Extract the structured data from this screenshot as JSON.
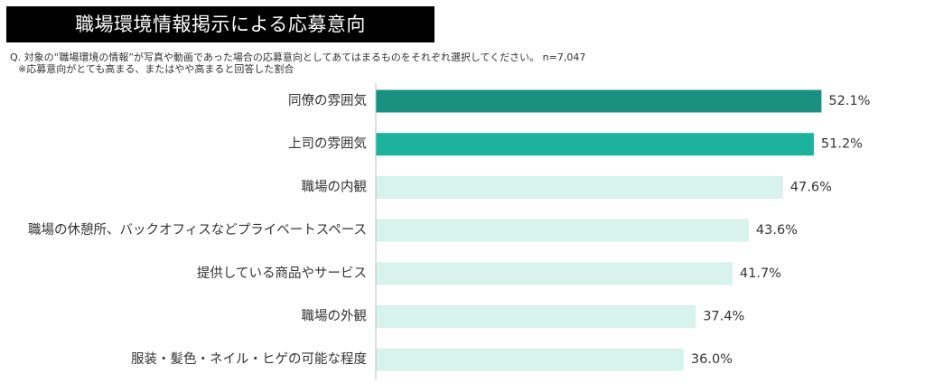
{
  "title": "職場環境情報掲示による応募意向",
  "question": "Q. 対象の“職場環境の情報”が写真や動画であった場合の応募意向としてあてはまるものをそれぞれ選択してください。 n=7,047",
  "note": "※応募意向がとても高まる、またはやや高まると回答した割合",
  "colors": {
    "dark_teal": "#1a9180",
    "teal": "#1cb29d",
    "light_mint": "#d8f2ec",
    "axis": "#bfbfbf"
  },
  "chart_data": {
    "type": "bar",
    "orientation": "horizontal",
    "title": "職場環境情報掲示による応募意向",
    "xlabel": "",
    "ylabel": "",
    "xlim": [
      0,
      100
    ],
    "grid": false,
    "value_suffix": "%",
    "categories": [
      "同僚の雰囲気",
      "上司の雰囲気",
      "職場の内観",
      "職場の休憩所、バックオフィスなどプライベートスペース",
      "提供している商品やサービス",
      "職場の外観",
      "服装・髪色・ネイル・ヒゲの可能な程度"
    ],
    "values": [
      52.1,
      51.2,
      47.6,
      43.6,
      41.7,
      37.4,
      36.0
    ],
    "value_labels": [
      "52.1%",
      "51.2%",
      "47.6%",
      "43.6%",
      "41.7%",
      "37.4%",
      "36.0%"
    ],
    "bar_colors": [
      "#1a9180",
      "#1cb29d",
      "#d8f2ec",
      "#d8f2ec",
      "#d8f2ec",
      "#d8f2ec",
      "#d8f2ec"
    ]
  }
}
